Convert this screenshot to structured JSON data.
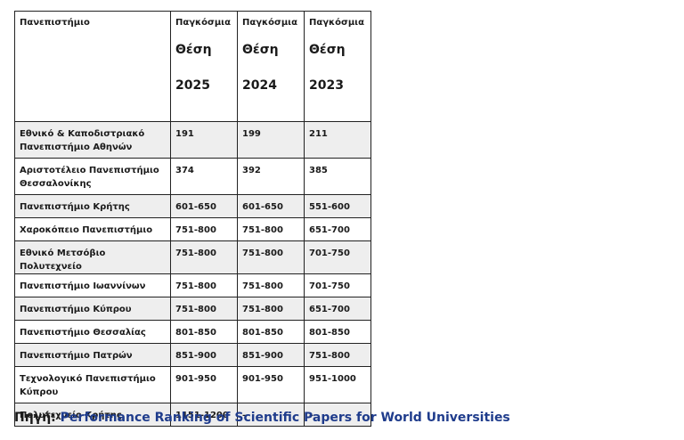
{
  "table": {
    "header": {
      "col0": "Πανεπιστήμιο",
      "col1": {
        "line1": "Παγκόσμια",
        "line2": "Θέση",
        "year": "2025"
      },
      "col2": {
        "line1": "Παγκόσμια",
        "line2": "Θέση",
        "year": "2024"
      },
      "col3": {
        "line1": "Παγκόσμια",
        "line2": "Θέση",
        "year": "2023"
      }
    },
    "rows": [
      {
        "name": "Εθνικό & Καποδιστριακό Πανεπιστήμιο Αθηνών",
        "r2025": "191",
        "r2024": "199",
        "r2023": "211"
      },
      {
        "name": "Αριστοτέλειο Πανεπιστήμιο Θεσσαλονίκης",
        "r2025": "374",
        "r2024": "392",
        "r2023": "385"
      },
      {
        "name": "Πανεπιστήμιο Κρήτης",
        "r2025": "601-650",
        "r2024": "601-650",
        "r2023": "551-600"
      },
      {
        "name": "Χαροκόπειο Πανεπιστήμιο",
        "r2025": "751-800",
        "r2024": "751-800",
        "r2023": "651-700"
      },
      {
        "name": "Εθνικό Μετσόβιο Πολυτεχνείο",
        "r2025": "751-800",
        "r2024": "751-800",
        "r2023": "701-750"
      },
      {
        "name": "Πανεπιστήμιο Ιωαννίνων",
        "r2025": "751-800",
        "r2024": "751-800",
        "r2023": "701-750"
      },
      {
        "name": "Πανεπιστήμιο Κύπρου",
        "r2025": "751-800",
        "r2024": "751-800",
        "r2023": "651-700"
      },
      {
        "name": "Πανεπιστήμιο Θεσσαλίας",
        "r2025": "801-850",
        "r2024": "801-850",
        "r2023": "801-850"
      },
      {
        "name": "Πανεπιστήμιο Πατρών",
        "r2025": "851-900",
        "r2024": "851-900",
        "r2023": "751-800"
      },
      {
        "name": "Τεχνολογικό Πανεπιστήμιο Κύπρου",
        "r2025": "901-950",
        "r2024": "901-950",
        "r2023": "951-1000"
      },
      {
        "name": "Πολυτεχνείο Κρήτης",
        "r2025": "1151-1200",
        "r2024": "–",
        "r2023": "–"
      }
    ]
  },
  "source": {
    "label": "Πηγή:",
    "text": "Performance Ranking of Scientific Papers for World Universities"
  }
}
